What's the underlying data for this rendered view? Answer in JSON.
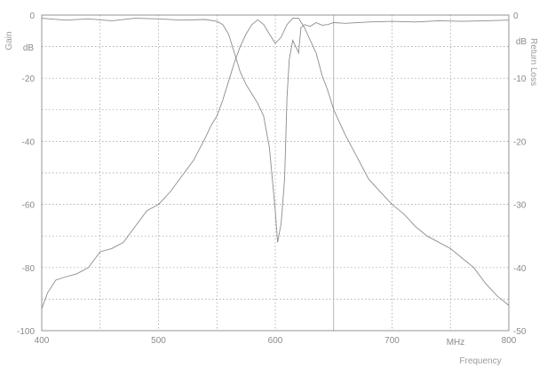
{
  "chart_data": {
    "type": "line",
    "xlabel": "Frequency",
    "ylabel_left": "Gain",
    "ylabel_right": "Return Loss",
    "x_unit_label": "MHz",
    "left_unit_label": "dB",
    "right_unit_label": "dB",
    "xlim": [
      400,
      800
    ],
    "ylim_left": [
      -100,
      0
    ],
    "ylim_right": [
      -50,
      0
    ],
    "x_ticks": [
      400,
      500,
      600,
      700,
      800
    ],
    "y_ticks_left": [
      0,
      -20,
      -40,
      -60,
      -80,
      -100
    ],
    "y_ticks_right": [
      0,
      -10,
      -20,
      -30,
      -40,
      -50
    ],
    "grid": true,
    "series": [
      {
        "axis": "left",
        "color": "#8c8c8c",
        "x": [
          400,
          405,
          412,
          420,
          430,
          440,
          450,
          460,
          470,
          480,
          490,
          500,
          510,
          520,
          530,
          540,
          545,
          550,
          555,
          560,
          565,
          570,
          575,
          580,
          585,
          590,
          595,
          600,
          605,
          610,
          615,
          620,
          625,
          630,
          635,
          640,
          645,
          650,
          660,
          670,
          680,
          690,
          700,
          710,
          720,
          730,
          740,
          750,
          760,
          770,
          780,
          790,
          800
        ],
        "y": [
          -93,
          -88,
          -84,
          -83,
          -82,
          -80,
          -75,
          -74,
          -72,
          -67,
          -62,
          -60,
          -56,
          -51,
          -46,
          -39,
          -35,
          -32,
          -27,
          -21,
          -15,
          -10,
          -6,
          -3,
          -1.5,
          -3,
          -6,
          -9,
          -7,
          -3,
          -1,
          -1,
          -4,
          -8,
          -12,
          -19,
          -24,
          -30,
          -38,
          -45,
          -52,
          -56,
          -60,
          -63,
          -67,
          -70,
          -72,
          -74,
          -77,
          -80,
          -85,
          -89,
          -92
        ]
      },
      {
        "axis": "right",
        "color": "#8c8c8c",
        "x": [
          400,
          420,
          440,
          460,
          480,
          500,
          520,
          540,
          550,
          555,
          560,
          565,
          570,
          575,
          580,
          585,
          590,
          595,
          600,
          602,
          605,
          608,
          610,
          612,
          615,
          620,
          622,
          625,
          630,
          635,
          640,
          645,
          650,
          660,
          680,
          700,
          720,
          740,
          760,
          780,
          800
        ],
        "y": [
          -0.5,
          -0.8,
          -0.6,
          -0.9,
          -0.5,
          -0.6,
          -0.8,
          -0.7,
          -1,
          -1.5,
          -3,
          -6,
          -9,
          -11,
          -12.5,
          -14,
          -16,
          -21,
          -31,
          -36,
          -33,
          -26,
          -13,
          -7,
          -4,
          -6,
          -2,
          -1.5,
          -1.8,
          -1.2,
          -1.6,
          -1.5,
          -1.2,
          -1.3,
          -1.1,
          -1.0,
          -1.1,
          -0.9,
          -1.0,
          -0.9,
          -0.8
        ]
      }
    ]
  }
}
